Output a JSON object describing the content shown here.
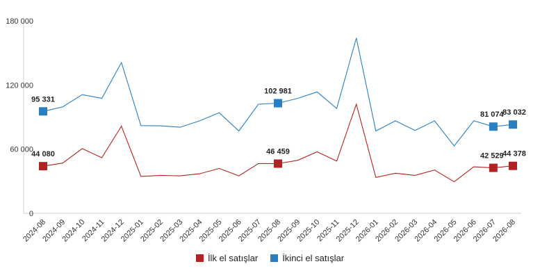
{
  "chart_data": {
    "type": "line",
    "categories": [
      "2024-08",
      "2024-09",
      "2024-10",
      "2024-11",
      "2024-12",
      "2025-01",
      "2025-02",
      "2025-03",
      "2025-04",
      "2025-05",
      "2025-06",
      "2025-07",
      "2025-08",
      "2025-09",
      "2025-10",
      "2025-11",
      "2025-12",
      "2026-01",
      "2026-02",
      "2026-03",
      "2026-04",
      "2026-05",
      "2026-06",
      "2026-07",
      "2026-08"
    ],
    "ylim": [
      0,
      180000
    ],
    "yticks": [
      0,
      60000,
      120000,
      180000
    ],
    "ytick_labels": [
      "0",
      "60 000",
      "120 000",
      "180 000"
    ],
    "grid": false,
    "legend_position": "bottom",
    "series": [
      {
        "name": "İlk el satışlar",
        "color": "#b22222",
        "values": [
          44080,
          47000,
          60500,
          52000,
          81500,
          34500,
          35500,
          35000,
          37000,
          42000,
          35000,
          46500,
          46459,
          49500,
          57500,
          48800,
          102000,
          33500,
          37500,
          35500,
          40500,
          29500,
          43500,
          42529,
          44378
        ],
        "markers": [
          0,
          12,
          23,
          24
        ],
        "labels": {
          "0": "44 080",
          "12": "46 459",
          "23": "42 529",
          "24": "44 378"
        }
      },
      {
        "name": "İkinci el satışlar",
        "color": "#2a7fc1",
        "values": [
          95331,
          99500,
          111000,
          107500,
          141000,
          82000,
          81800,
          80500,
          86500,
          94000,
          77000,
          102000,
          102981,
          107500,
          113500,
          98000,
          164000,
          77000,
          86500,
          77500,
          86500,
          63000,
          86500,
          81074,
          83032
        ],
        "markers": [
          0,
          12,
          23,
          24
        ],
        "labels": {
          "0": "95 331",
          "12": "102 981",
          "23": "81 074",
          "24": "83 032"
        }
      }
    ]
  }
}
